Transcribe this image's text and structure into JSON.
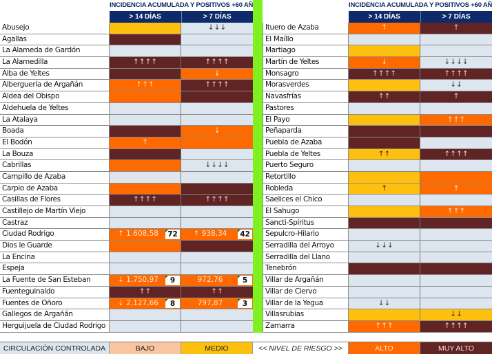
{
  "header": {
    "title": "INCIDENCIA ACUMULADA Y POSITIVOS +60 AÑOS",
    "col_14": "> 14 DÍAS",
    "col_7": "> 7 DÍAS"
  },
  "colors": {
    "none": "#dde5ef",
    "bajo": "#f8c6a0",
    "medio": "#fec00f",
    "alto": "#ff6a00",
    "muy_alto": "#612424",
    "header_bg": "#0e2a6a",
    "divider": "#80f020"
  },
  "left_rows": [
    {
      "name": "Abusejo",
      "d14": {
        "level": "medio",
        "text": ""
      },
      "d7": {
        "level": "none",
        "text": "↓↓↓"
      }
    },
    {
      "name": "Agallas",
      "d14": {
        "level": "muy",
        "text": ""
      },
      "d7": {
        "level": "none",
        "text": ""
      }
    },
    {
      "name": "La Alameda de Gardón",
      "d14": {
        "level": "none",
        "text": ""
      },
      "d7": {
        "level": "none",
        "text": ""
      }
    },
    {
      "name": "La Alamedilla",
      "d14": {
        "level": "muy",
        "text": "↑↑↑↑"
      },
      "d7": {
        "level": "muy",
        "text": "↑↑↑↑"
      }
    },
    {
      "name": "Alba de Yeltes",
      "d14": {
        "level": "muy",
        "text": ""
      },
      "d7": {
        "level": "alto",
        "text": "↓"
      }
    },
    {
      "name": "Alberguería de Argañán",
      "d14": {
        "level": "alto",
        "text": "↑↑↑"
      },
      "d7": {
        "level": "muy",
        "text": "↑↑↑↑"
      }
    },
    {
      "name": "Aldea del Obispo",
      "d14": {
        "level": "alto",
        "text": ""
      },
      "d7": {
        "level": "muy",
        "text": ""
      }
    },
    {
      "name": "Aldehuela de Yeltes",
      "d14": {
        "level": "none",
        "text": ""
      },
      "d7": {
        "level": "none",
        "text": ""
      }
    },
    {
      "name": "La Atalaya",
      "d14": {
        "level": "none",
        "text": ""
      },
      "d7": {
        "level": "none",
        "text": ""
      }
    },
    {
      "name": "Boada",
      "d14": {
        "level": "muy",
        "text": ""
      },
      "d7": {
        "level": "alto",
        "text": "↓"
      }
    },
    {
      "name": "El Bodón",
      "d14": {
        "level": "alto",
        "text": "↑"
      },
      "d7": {
        "level": "alto",
        "text": ""
      }
    },
    {
      "name": "La Bouza",
      "d14": {
        "level": "muy",
        "text": ""
      },
      "d7": {
        "level": "none",
        "text": ""
      }
    },
    {
      "name": "Cabrillas",
      "d14": {
        "level": "alto",
        "text": ""
      },
      "d7": {
        "level": "none",
        "text": "↓↓↓↓"
      }
    },
    {
      "name": "Campillo de Azaba",
      "d14": {
        "level": "none",
        "text": ""
      },
      "d7": {
        "level": "none",
        "text": ""
      }
    },
    {
      "name": "Carpio de Azaba",
      "d14": {
        "level": "alto",
        "text": ""
      },
      "d7": {
        "level": "muy",
        "text": ""
      }
    },
    {
      "name": "Casillas de Flores",
      "d14": {
        "level": "muy",
        "text": "↑↑↑↑"
      },
      "d7": {
        "level": "muy",
        "text": "↑↑↑↑"
      }
    },
    {
      "name": "Castillejo de Martín Viejo",
      "d14": {
        "level": "none",
        "text": ""
      },
      "d7": {
        "level": "none",
        "text": ""
      }
    },
    {
      "name": "Castraz",
      "d14": {
        "level": "none",
        "text": ""
      },
      "d7": {
        "level": "none",
        "text": ""
      }
    },
    {
      "name": "Ciudad Rodrigo",
      "d14": {
        "level": "alto",
        "text": "↑ 1.608,58",
        "badge": "72"
      },
      "d7": {
        "level": "alto",
        "text": "↑ 938,34",
        "badge": "42"
      }
    },
    {
      "name": "Dios le Guarde",
      "d14": {
        "level": "alto",
        "text": ""
      },
      "d7": {
        "level": "muy",
        "text": ""
      }
    },
    {
      "name": "La Encina",
      "d14": {
        "level": "none",
        "text": ""
      },
      "d7": {
        "level": "none",
        "text": ""
      }
    },
    {
      "name": "Espeja",
      "d14": {
        "level": "none",
        "text": ""
      },
      "d7": {
        "level": "none",
        "text": ""
      }
    },
    {
      "name": "La Fuente de San Esteban",
      "d14": {
        "level": "alto",
        "text": "↓ 1.750,97",
        "badge": "9"
      },
      "d7": {
        "level": "alto",
        "text": "972,76",
        "badge": "5"
      }
    },
    {
      "name": "Fuenteguinaldo",
      "d14": {
        "level": "muy",
        "text": "↑↑"
      },
      "d7": {
        "level": "muy",
        "text": "↑↑"
      }
    },
    {
      "name": "Fuentes de Oñoro",
      "d14": {
        "level": "alto",
        "text": "↓ 2.127,66",
        "badge": "8"
      },
      "d7": {
        "level": "alto",
        "text": "797,87",
        "badge": "3"
      }
    },
    {
      "name": "Gallegos de Argañán",
      "d14": {
        "level": "none",
        "text": ""
      },
      "d7": {
        "level": "none",
        "text": ""
      }
    },
    {
      "name": "Herguijuela de Ciudad Rodrigo",
      "d14": {
        "level": "none",
        "text": ""
      },
      "d7": {
        "level": "none",
        "text": ""
      }
    }
  ],
  "right_rows": [
    {
      "name": "Ituero de Azaba",
      "d14": {
        "level": "alto",
        "text": "↑"
      },
      "d7": {
        "level": "muy",
        "text": "↑"
      }
    },
    {
      "name": "El Maíllo",
      "d14": {
        "level": "none",
        "text": ""
      },
      "d7": {
        "level": "none",
        "text": ""
      }
    },
    {
      "name": "Martiago",
      "d14": {
        "level": "medio",
        "text": ""
      },
      "d7": {
        "level": "none",
        "text": ""
      }
    },
    {
      "name": "Martín de Yeltes",
      "d14": {
        "level": "alto",
        "text": "↓"
      },
      "d7": {
        "level": "none",
        "text": "↓↓↓↓"
      }
    },
    {
      "name": "Monsagro",
      "d14": {
        "level": "muy",
        "text": "↑↑↑↑"
      },
      "d7": {
        "level": "muy",
        "text": "↑↑↑↑"
      }
    },
    {
      "name": "Morasverdes",
      "d14": {
        "level": "medio",
        "text": ""
      },
      "d7": {
        "level": "none",
        "text": "↓↓"
      }
    },
    {
      "name": "Navasfrías",
      "d14": {
        "level": "muy",
        "text": "↑↑"
      },
      "d7": {
        "level": "muy",
        "text": "↑"
      }
    },
    {
      "name": "Pastores",
      "d14": {
        "level": "none",
        "text": ""
      },
      "d7": {
        "level": "none",
        "text": ""
      }
    },
    {
      "name": "El Payo",
      "d14": {
        "level": "medio",
        "text": ""
      },
      "d7": {
        "level": "alto",
        "text": "↑↑↑"
      }
    },
    {
      "name": "Peñaparda",
      "d14": {
        "level": "muy",
        "text": ""
      },
      "d7": {
        "level": "muy",
        "text": ""
      }
    },
    {
      "name": "Puebla de Azaba",
      "d14": {
        "level": "muy",
        "text": ""
      },
      "d7": {
        "level": "none",
        "text": ""
      }
    },
    {
      "name": "Puebla de Yeltes",
      "d14": {
        "level": "medio",
        "text": "↑↑"
      },
      "d7": {
        "level": "muy",
        "text": "↑↑↑↑"
      }
    },
    {
      "name": "Puerto Seguro",
      "d14": {
        "level": "none",
        "text": ""
      },
      "d7": {
        "level": "none",
        "text": ""
      }
    },
    {
      "name": "Retortillo",
      "d14": {
        "level": "medio",
        "text": ""
      },
      "d7": {
        "level": "alto",
        "text": ""
      }
    },
    {
      "name": "Robleda",
      "d14": {
        "level": "medio",
        "text": "↑"
      },
      "d7": {
        "level": "alto",
        "text": "↑"
      }
    },
    {
      "name": "Saelices el Chico",
      "d14": {
        "level": "none",
        "text": ""
      },
      "d7": {
        "level": "none",
        "text": ""
      }
    },
    {
      "name": "El Sahugo",
      "d14": {
        "level": "medio",
        "text": ""
      },
      "d7": {
        "level": "alto",
        "text": "↑↑↑"
      }
    },
    {
      "name": "Sancti-Spíritus",
      "d14": {
        "level": "muy",
        "text": ""
      },
      "d7": {
        "level": "muy",
        "text": ""
      }
    },
    {
      "name": "Sepulcro-Hilario",
      "d14": {
        "level": "none",
        "text": ""
      },
      "d7": {
        "level": "none",
        "text": ""
      }
    },
    {
      "name": "Serradilla del Arroyo",
      "d14": {
        "level": "none",
        "text": "↓↓↓"
      },
      "d7": {
        "level": "none",
        "text": ""
      }
    },
    {
      "name": "Serradilla del Llano",
      "d14": {
        "level": "none",
        "text": ""
      },
      "d7": {
        "level": "none",
        "text": ""
      }
    },
    {
      "name": "Tenebrón",
      "d14": {
        "level": "muy",
        "text": ""
      },
      "d7": {
        "level": "muy",
        "text": ""
      }
    },
    {
      "name": "Villar de Argañán",
      "d14": {
        "level": "none",
        "text": ""
      },
      "d7": {
        "level": "none",
        "text": ""
      }
    },
    {
      "name": "Villar de Ciervo",
      "d14": {
        "level": "none",
        "text": ""
      },
      "d7": {
        "level": "none",
        "text": ""
      }
    },
    {
      "name": "Villar de la Yegua",
      "d14": {
        "level": "none",
        "text": "↓↓"
      },
      "d7": {
        "level": "none",
        "text": ""
      }
    },
    {
      "name": "Villasrubias",
      "d14": {
        "level": "medio",
        "text": ""
      },
      "d7": {
        "level": "medio",
        "text": "↓↓"
      }
    },
    {
      "name": "Zamarra",
      "d14": {
        "level": "alto",
        "text": "↑↑↑"
      },
      "d7": {
        "level": "muy",
        "text": "↑↑↑↑"
      }
    }
  ],
  "legend": {
    "controlada": "CIRCULACIÓN CONTROLADA",
    "bajo": "BAJO",
    "medio": "MEDIO",
    "nivel": "<< NIVEL DE RIESGO >>",
    "alto": "ALTO",
    "muy_alto": "MUY ALTO"
  }
}
